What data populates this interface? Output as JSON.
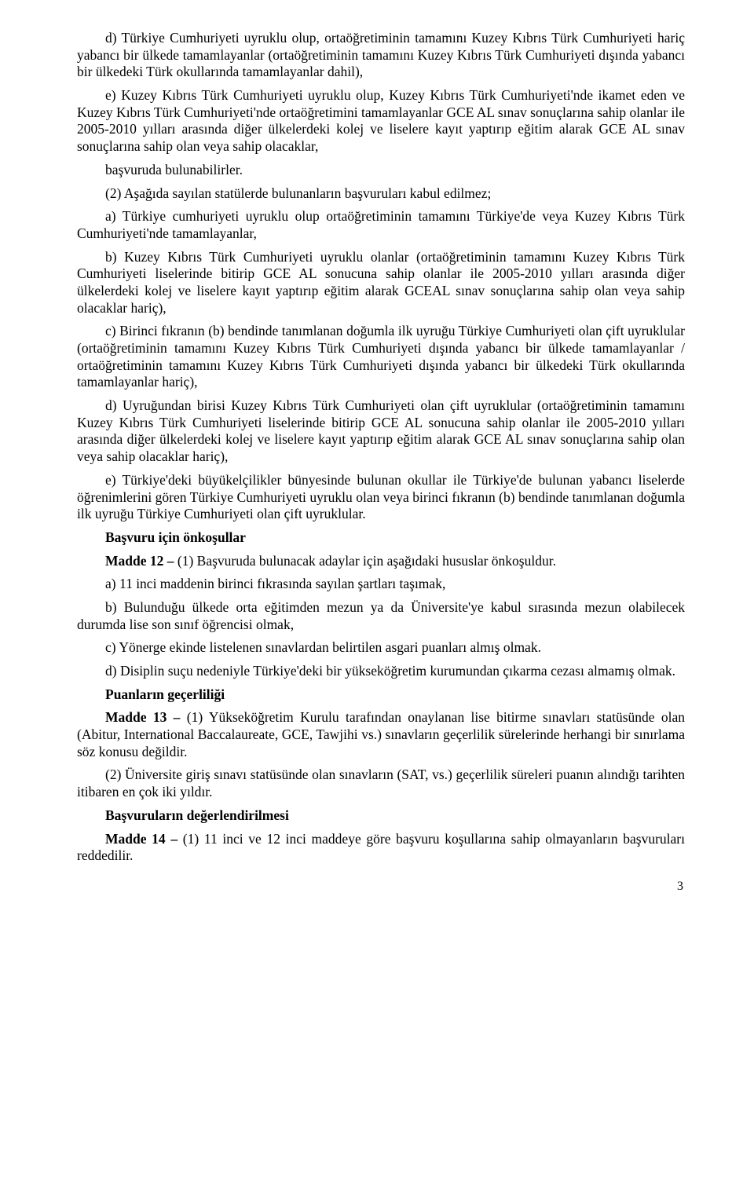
{
  "p1": "d) Türkiye Cumhuriyeti uyruklu olup, ortaöğretiminin tamamını Kuzey Kıbrıs Türk Cumhuriyeti hariç yabancı bir ülkede tamamlayanlar (ortaöğretiminin tamamını Kuzey Kıbrıs Türk Cumhuriyeti dışında yabancı bir ülkedeki Türk okullarında tamamlayanlar dahil),",
  "p2": "e) Kuzey Kıbrıs Türk Cumhuriyeti uyruklu olup, Kuzey Kıbrıs Türk Cumhuriyeti'nde ikamet eden ve Kuzey Kıbrıs Türk Cumhuriyeti'nde ortaöğretimini tamamlayanlar GCE AL sınav sonuçlarına sahip olanlar ile 2005-2010 yılları arasında diğer ülkelerdeki kolej ve liselere kayıt yaptırıp eğitim alarak GCE AL sınav sonuçlarına sahip olan veya sahip olacaklar,",
  "p3": "başvuruda bulunabilirler.",
  "p4": "(2) Aşağıda sayılan statülerde bulunanların başvuruları kabul edilmez;",
  "p5": "a) Türkiye cumhuriyeti uyruklu olup ortaöğretiminin tamamını Türkiye'de veya Kuzey Kıbrıs Türk Cumhuriyeti'nde tamamlayanlar,",
  "p6": "b) Kuzey Kıbrıs Türk Cumhuriyeti uyruklu olanlar (ortaöğretiminin tamamını Kuzey Kıbrıs Türk Cumhuriyeti liselerinde bitirip GCE AL sonucuna sahip olanlar ile 2005-2010 yılları arasında diğer ülkelerdeki kolej ve liselere kayıt yaptırıp eğitim alarak GCEAL sınav sonuçlarına sahip olan veya sahip olacaklar hariç),",
  "p7": "c) Birinci fıkranın (b) bendinde tanımlanan doğumla ilk uyruğu Türkiye Cumhuriyeti olan çift uyruklular (ortaöğretiminin tamamını Kuzey Kıbrıs Türk Cumhuriyeti dışında yabancı bir ülkede tamamlayanlar / ortaöğretiminin tamamını Kuzey Kıbrıs Türk Cumhuriyeti dışında yabancı bir ülkedeki Türk okullarında tamamlayanlar hariç),",
  "p8": "d) Uyruğundan birisi Kuzey Kıbrıs Türk Cumhuriyeti olan çift uyruklular (ortaöğretiminin tamamını Kuzey Kıbrıs Türk Cumhuriyeti liselerinde bitirip GCE AL sonucuna sahip olanlar ile 2005-2010 yılları arasında diğer ülkelerdeki kolej ve liselere kayıt yaptırıp eğitim alarak GCE AL sınav sonuçlarına sahip olan veya sahip olacaklar hariç),",
  "p9": "e) Türkiye'deki büyükelçilikler bünyesinde bulunan okullar ile Türkiye'de bulunan yabancı liselerde öğrenimlerini gören Türkiye Cumhuriyeti uyruklu olan veya birinci fıkranın (b) bendinde tanımlanan doğumla ilk uyruğu Türkiye Cumhuriyeti olan çift uyruklular.",
  "h1": "Başvuru için önkoşullar",
  "p10a": "Madde 12 – ",
  "p10b": "(1) Başvuruda bulunacak adaylar için aşağıdaki hususlar önkoşuldur.",
  "p11": "a) 11 inci maddenin birinci fıkrasında sayılan şartları taşımak,",
  "p12": "b) Bulunduğu ülkede orta eğitimden mezun ya da Üniversite'ye kabul sırasında mezun olabilecek durumda lise son sınıf öğrencisi olmak,",
  "p13": "c) Yönerge ekinde listelenen sınavlardan belirtilen asgari puanları almış olmak.",
  "p14": "d) Disiplin suçu nedeniyle Türkiye'deki bir yükseköğretim kurumundan çıkarma cezası almamış olmak.",
  "h2": "Puanların geçerliliği",
  "p15a": "Madde 13 – ",
  "p15b": "(1) Yükseköğretim Kurulu tarafından onaylanan lise bitirme sınavları statüsünde olan (Abitur, International Baccalaureate, GCE, Tawjihi vs.) sınavların geçerlilik sürelerinde herhangi bir sınırlama söz konusu değildir.",
  "p16": "(2) Üniversite giriş sınavı statüsünde olan sınavların (SAT, vs.) geçerlilik süreleri puanın alındığı tarihten itibaren en çok iki yıldır.",
  "h3": "Başvuruların değerlendirilmesi",
  "p17a": "Madde 14 – ",
  "p17b": "(1) 11 inci ve 12 inci maddeye göre başvuru koşullarına sahip olmayanların başvuruları reddedilir.",
  "pageNumber": "3"
}
